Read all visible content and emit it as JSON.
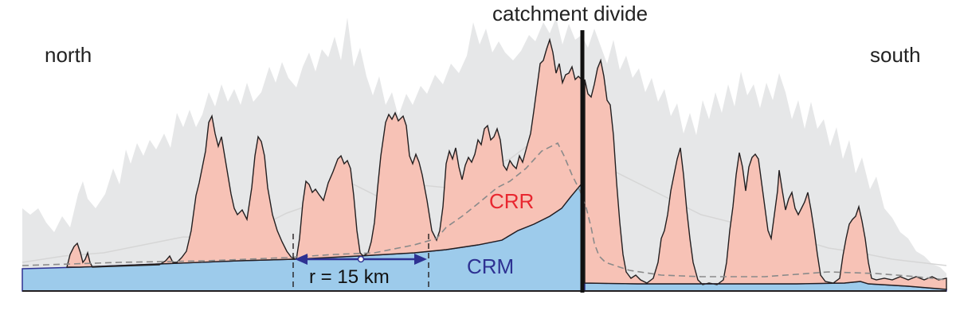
{
  "labels": {
    "north": "north",
    "south": "south",
    "divide": "catchment divide",
    "crr": "CRR",
    "crm": "CRM",
    "radius": "r = 15 km"
  },
  "colors": {
    "background_topography": "#e6e7e8",
    "crr_fill": "#f7c2b6",
    "crm_fill": "#9dcbeb",
    "crr_label": "#e8262f",
    "crm_label": "#2e3192",
    "radius_arrow": "#2e3192",
    "outline": "#231f20",
    "dashed_line": "#8a8a8a"
  }
}
